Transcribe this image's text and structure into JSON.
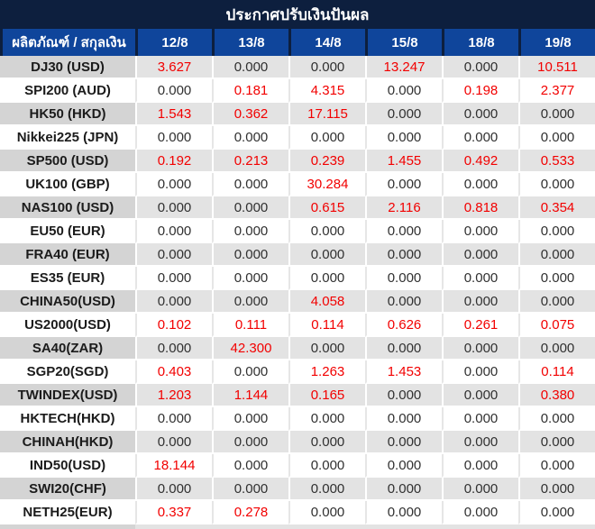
{
  "title": "ประกาศปรับเงินปันผล",
  "colors": {
    "title_bar": "#0d1f3e",
    "header_bg": "#0f459b",
    "header_divider": "#0d1f3e",
    "stripe_label_bg": "#d4d4d4",
    "stripe_value_bg": "#e3e3e3",
    "plain_row_divider": "#e6e6e6",
    "zero_value_text": "#303030",
    "nonzero_value_text": "#f20000",
    "label_text": "#1b1b1b",
    "header_text": "#ffffff"
  },
  "table": {
    "product_header": "ผลิตภัณฑ์ / สกุลเงิน",
    "date_columns": [
      "12/8",
      "13/8",
      "14/8",
      "15/8",
      "18/8",
      "19/8"
    ],
    "rows": [
      {
        "product": "DJ30 (USD)",
        "values": [
          "3.627",
          "0.000",
          "0.000",
          "13.247",
          "0.000",
          "10.511"
        ]
      },
      {
        "product": "SPI200 (AUD)",
        "values": [
          "0.000",
          "0.181",
          "4.315",
          "0.000",
          "0.198",
          "2.377"
        ]
      },
      {
        "product": "HK50 (HKD)",
        "values": [
          "1.543",
          "0.362",
          "17.115",
          "0.000",
          "0.000",
          "0.000"
        ]
      },
      {
        "product": "Nikkei225 (JPN)",
        "values": [
          "0.000",
          "0.000",
          "0.000",
          "0.000",
          "0.000",
          "0.000"
        ]
      },
      {
        "product": "SP500 (USD)",
        "values": [
          "0.192",
          "0.213",
          "0.239",
          "1.455",
          "0.492",
          "0.533"
        ]
      },
      {
        "product": "UK100 (GBP)",
        "values": [
          "0.000",
          "0.000",
          "30.284",
          "0.000",
          "0.000",
          "0.000"
        ]
      },
      {
        "product": "NAS100 (USD)",
        "values": [
          "0.000",
          "0.000",
          "0.615",
          "2.116",
          "0.818",
          "0.354"
        ]
      },
      {
        "product": "EU50 (EUR)",
        "values": [
          "0.000",
          "0.000",
          "0.000",
          "0.000",
          "0.000",
          "0.000"
        ]
      },
      {
        "product": "FRA40 (EUR)",
        "values": [
          "0.000",
          "0.000",
          "0.000",
          "0.000",
          "0.000",
          "0.000"
        ]
      },
      {
        "product": "ES35 (EUR)",
        "values": [
          "0.000",
          "0.000",
          "0.000",
          "0.000",
          "0.000",
          "0.000"
        ]
      },
      {
        "product": "CHINA50(USD)",
        "values": [
          "0.000",
          "0.000",
          "4.058",
          "0.000",
          "0.000",
          "0.000"
        ]
      },
      {
        "product": "US2000(USD)",
        "values": [
          "0.102",
          "0.111",
          "0.114",
          "0.626",
          "0.261",
          "0.075"
        ]
      },
      {
        "product": "SA40(ZAR)",
        "values": [
          "0.000",
          "42.300",
          "0.000",
          "0.000",
          "0.000",
          "0.000"
        ]
      },
      {
        "product": "SGP20(SGD)",
        "values": [
          "0.403",
          "0.000",
          "1.263",
          "1.453",
          "0.000",
          "0.114"
        ]
      },
      {
        "product": "TWINDEX(USD)",
        "values": [
          "1.203",
          "1.144",
          "0.165",
          "0.000",
          "0.000",
          "0.380"
        ]
      },
      {
        "product": "HKTECH(HKD)",
        "values": [
          "0.000",
          "0.000",
          "0.000",
          "0.000",
          "0.000",
          "0.000"
        ]
      },
      {
        "product": "CHINAH(HKD)",
        "values": [
          "0.000",
          "0.000",
          "0.000",
          "0.000",
          "0.000",
          "0.000"
        ]
      },
      {
        "product": "IND50(USD)",
        "values": [
          "18.144",
          "0.000",
          "0.000",
          "0.000",
          "0.000",
          "0.000"
        ]
      },
      {
        "product": "SWI20(CHF)",
        "values": [
          "0.000",
          "0.000",
          "0.000",
          "0.000",
          "0.000",
          "0.000"
        ]
      },
      {
        "product": "NETH25(EUR)",
        "values": [
          "0.337",
          "0.278",
          "0.000",
          "0.000",
          "0.000",
          "0.000"
        ]
      }
    ]
  }
}
